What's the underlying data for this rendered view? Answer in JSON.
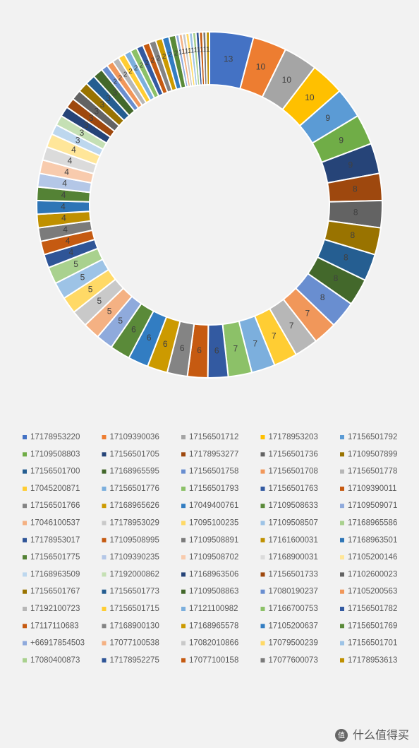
{
  "chart_data": {
    "type": "donut",
    "categories": [
      "17178953220",
      "17109390036",
      "17156501712",
      "17178953203",
      "17156501792",
      "17109508803",
      "17156501705",
      "17178953277",
      "17156501736",
      "17109507899",
      "17156501700",
      "17168965595",
      "17156501758",
      "17156501708",
      "17156501778",
      "17045200871",
      "17156501776",
      "17156501793",
      "17156501763",
      "17109390011",
      "17156501766",
      "17168965626",
      "17049400761",
      "17109508633",
      "17109509071",
      "17046100537",
      "17178953029",
      "17095100235",
      "17109508507",
      "17168965586",
      "17178953017",
      "17109508995",
      "17109508891",
      "17161600031",
      "17168963501",
      "17156501775",
      "17109390235",
      "17109508702",
      "17168900031",
      "17105200146",
      "17168963509",
      "17192000862",
      "17168963506",
      "17156501733",
      "17102600023",
      "17156501767",
      "17156501773",
      "17109508863",
      "17080190237",
      "17105200563",
      "17192100723",
      "17156501715",
      "17121100982",
      "17166700753",
      "17156501782",
      "17117110683",
      "17168900130",
      "17168965578",
      "17105200637",
      "17156501769",
      "+66917854503",
      "17077100538",
      "17082010866",
      "17079500239",
      "17156501701",
      "17080400873",
      "17178952275",
      "17077100158",
      "17077600073",
      "17178953613"
    ],
    "values": [
      13,
      10,
      10,
      10,
      9,
      9,
      9,
      8,
      8,
      8,
      8,
      8,
      8,
      7,
      7,
      7,
      7,
      7,
      6,
      6,
      6,
      6,
      6,
      6,
      5,
      5,
      5,
      5,
      5,
      5,
      4,
      4,
      4,
      4,
      4,
      4,
      4,
      4,
      4,
      4,
      3,
      3,
      3,
      3,
      3,
      3,
      3,
      3,
      2,
      2,
      2,
      2,
      2,
      2,
      2,
      2,
      2,
      2,
      2,
      2,
      1,
      1,
      1,
      1,
      1,
      1,
      1,
      1,
      1,
      1
    ],
    "colors": [
      "#4472C4",
      "#ED7D31",
      "#A5A5A5",
      "#FFC000",
      "#5B9BD5",
      "#70AD47",
      "#264478",
      "#9E480E",
      "#636363",
      "#997300",
      "#255E91",
      "#43682B",
      "#698ED0",
      "#F1975A",
      "#B7B7B7",
      "#FFCD33",
      "#7CAFDD",
      "#8CC168",
      "#335AA1",
      "#C65A11",
      "#848484",
      "#CC9A00",
      "#327DC2",
      "#5A8A39",
      "#8FAADC",
      "#F4B183",
      "#C9C9C9",
      "#FFD966",
      "#9DC3E6",
      "#A9D18E",
      "#2F5597",
      "#C55A11",
      "#7B7B7B",
      "#BF9000",
      "#2E75B6",
      "#548235",
      "#B4C7E7",
      "#F8CBAD",
      "#DBDBDB",
      "#FFE699",
      "#BDD7EE",
      "#C5E0B4",
      "#264478",
      "#9E480E",
      "#636363",
      "#997300",
      "#255E91",
      "#43682B",
      "#698ED0",
      "#F1975A",
      "#B7B7B7",
      "#FFCD33",
      "#7CAFDD",
      "#8CC168",
      "#335AA1",
      "#C65A11",
      "#848484",
      "#CC9A00",
      "#327DC2",
      "#5A8A39",
      "#8FAADC",
      "#F4B183",
      "#C9C9C9",
      "#FFD966",
      "#9DC3E6",
      "#A9D18E",
      "#2F5597",
      "#C55A11",
      "#7B7B7B",
      "#BF9000"
    ]
  },
  "watermark": "什么值得买"
}
